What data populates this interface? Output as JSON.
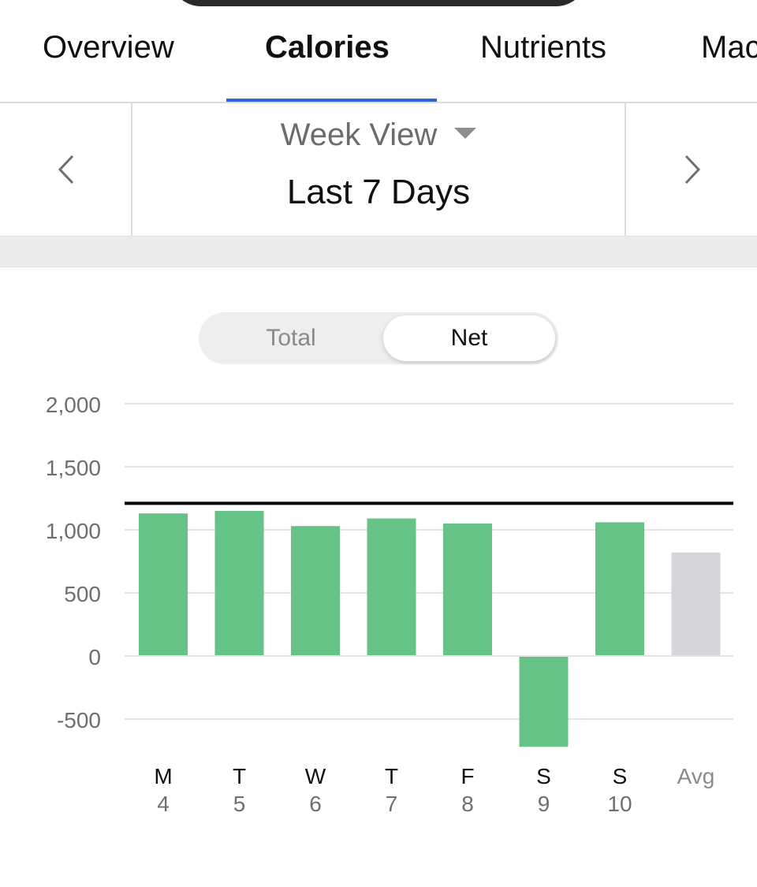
{
  "tabs": [
    {
      "label": "Overview",
      "active": false
    },
    {
      "label": "Calories",
      "active": true
    },
    {
      "label": "Nutrients",
      "active": false
    },
    {
      "label": "Mac",
      "active": false
    }
  ],
  "nav": {
    "view_label": "Week View",
    "range_label": "Last 7 Days",
    "prev_icon": "chevron-left-icon",
    "next_icon": "chevron-right-icon"
  },
  "segmented": {
    "total_label": "Total",
    "net_label": "Net",
    "selected": "Net"
  },
  "colors": {
    "accent": "#2f64d6",
    "bar": "#66c388",
    "avg_bar": "#d6d6da",
    "goal_line": "#000000"
  },
  "chart_data": {
    "type": "bar",
    "categories": [
      {
        "day": "M",
        "date": "4"
      },
      {
        "day": "T",
        "date": "5"
      },
      {
        "day": "W",
        "date": "6"
      },
      {
        "day": "T",
        "date": "7"
      },
      {
        "day": "F",
        "date": "8"
      },
      {
        "day": "S",
        "date": "9"
      },
      {
        "day": "S",
        "date": "10"
      },
      {
        "day": "Avg",
        "date": ""
      }
    ],
    "values": [
      1130,
      1150,
      1030,
      1090,
      1050,
      -720,
      1060,
      820
    ],
    "goal": 1210,
    "y_ticks": [
      "2,000",
      "1,500",
      "1,000",
      "500",
      "0",
      "-500"
    ],
    "y_tick_values": [
      2000,
      1500,
      1000,
      500,
      0,
      -500
    ],
    "ylim": [
      -720,
      2000
    ],
    "grid": true
  }
}
